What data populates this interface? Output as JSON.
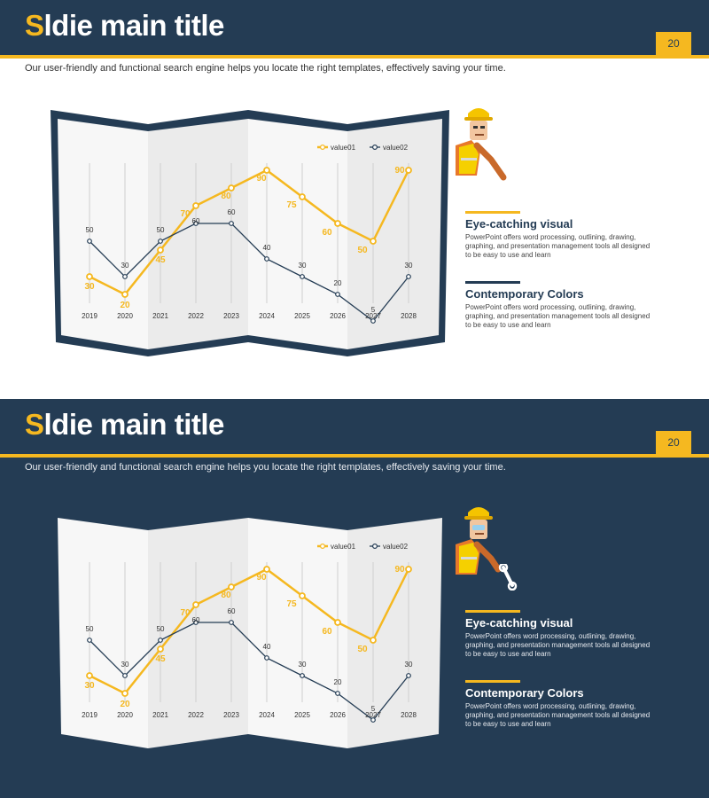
{
  "slides": [
    {
      "title_first": "S",
      "title_rest": "ldie main title",
      "page_number": "20",
      "subtitle": "Our user-friendly and functional search engine helps you locate the right templates, effectively saving your time.",
      "info": [
        {
          "heading": "Eye-catching visual",
          "body": "PowerPoint offers word processing, outlining, drawing, graphing, and presentation management tools all designed to be easy to use and learn"
        },
        {
          "heading": "Contemporary Colors",
          "body": "PowerPoint offers word processing, outlining, drawing, graphing, and presentation management tools all designed to be easy to use and learn"
        }
      ]
    },
    {
      "title_first": "S",
      "title_rest": "ldie main title",
      "page_number": "20",
      "subtitle": "Our user-friendly and functional search engine helps you locate the right templates, effectively saving your time.",
      "info": [
        {
          "heading": "Eye-catching visual",
          "body": "PowerPoint offers word processing, outlining, drawing, graphing, and presentation management tools all designed to be easy to use and learn"
        },
        {
          "heading": "Contemporary Colors",
          "body": "PowerPoint offers word processing, outlining, drawing, graphing, and presentation management tools all designed to be easy to use and learn"
        }
      ]
    }
  ],
  "colors": {
    "navy": "#243c54",
    "yellow": "#f5b820",
    "panel_light": "#f7f7f7",
    "panel_dark": "#ebebeb"
  },
  "icons": [
    "construction-worker-icon",
    "wrench-icon"
  ],
  "chart_data": {
    "type": "line",
    "categories": [
      "2019",
      "2020",
      "2021",
      "2022",
      "2023",
      "2024",
      "2025",
      "2026",
      "2027",
      "2028"
    ],
    "series": [
      {
        "name": "value01",
        "color": "#f5b820",
        "values": [
          30,
          20,
          45,
          70,
          80,
          90,
          75,
          60,
          50,
          90
        ]
      },
      {
        "name": "value02",
        "color": "#243c54",
        "values": [
          50,
          30,
          50,
          60,
          60,
          40,
          30,
          20,
          5,
          30
        ]
      }
    ],
    "ylim": [
      0,
      100
    ],
    "grid": "vertical",
    "legend": "top-right",
    "xlabel": "",
    "ylabel": ""
  }
}
